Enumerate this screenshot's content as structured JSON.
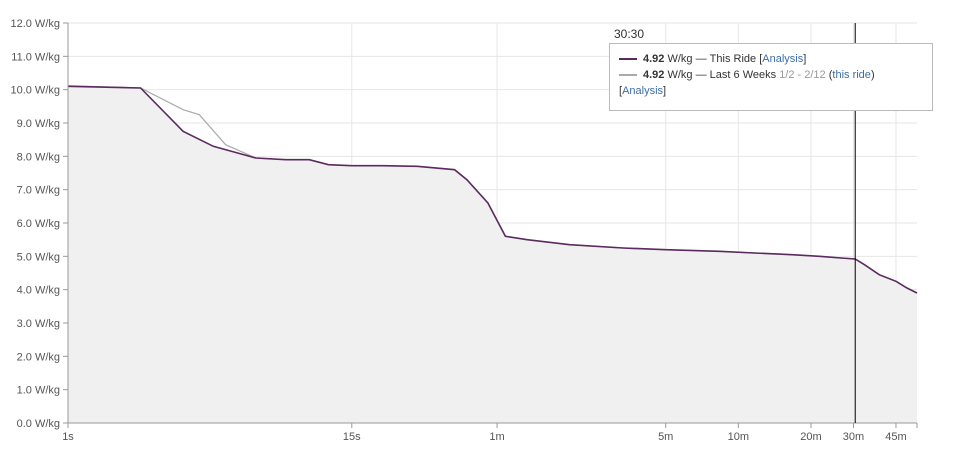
{
  "chart_data": {
    "type": "line",
    "title": "",
    "xlabel": "",
    "ylabel": "",
    "x_scale": "log",
    "ylim": [
      0,
      12
    ],
    "y_ticks": [
      "0.0 W/kg",
      "1.0 W/kg",
      "2.0 W/kg",
      "3.0 W/kg",
      "4.0 W/kg",
      "5.0 W/kg",
      "6.0 W/kg",
      "7.0 W/kg",
      "8.0 W/kg",
      "9.0 W/kg",
      "10.0 W/kg",
      "11.0 W/kg",
      "12.0 W/kg"
    ],
    "x_ticks": [
      {
        "label": "1s",
        "seconds": 1
      },
      {
        "label": "15s",
        "seconds": 15
      },
      {
        "label": "1m",
        "seconds": 60
      },
      {
        "label": "5m",
        "seconds": 300
      },
      {
        "label": "10m",
        "seconds": 600
      },
      {
        "label": "20m",
        "seconds": 1200
      },
      {
        "label": "30m",
        "seconds": 1800
      },
      {
        "label": "45m",
        "seconds": 2700
      }
    ],
    "x_range_seconds": [
      1,
      3300
    ],
    "grid": true,
    "series": [
      {
        "name": "This Ride",
        "color": "#5b2a5f",
        "points": [
          [
            1,
            10.1
          ],
          [
            2,
            10.05
          ],
          [
            3,
            8.75
          ],
          [
            4,
            8.3
          ],
          [
            6,
            7.95
          ],
          [
            8,
            7.9
          ],
          [
            10,
            7.9
          ],
          [
            12,
            7.75
          ],
          [
            15,
            7.72
          ],
          [
            20,
            7.72
          ],
          [
            28,
            7.7
          ],
          [
            40,
            7.6
          ],
          [
            45,
            7.3
          ],
          [
            55,
            6.6
          ],
          [
            65,
            5.6
          ],
          [
            80,
            5.5
          ],
          [
            120,
            5.35
          ],
          [
            200,
            5.25
          ],
          [
            300,
            5.2
          ],
          [
            500,
            5.15
          ],
          [
            700,
            5.1
          ],
          [
            1000,
            5.05
          ],
          [
            1300,
            5.0
          ],
          [
            1600,
            4.95
          ],
          [
            1830,
            4.92
          ],
          [
            2000,
            4.75
          ],
          [
            2300,
            4.45
          ],
          [
            2700,
            4.25
          ],
          [
            3000,
            4.05
          ],
          [
            3300,
            3.9
          ]
        ]
      },
      {
        "name": "Last 6 Weeks",
        "color": "#aaaaaa",
        "points": [
          [
            1,
            10.12
          ],
          [
            2,
            10.05
          ],
          [
            3,
            9.4
          ],
          [
            3.5,
            9.25
          ],
          [
            4.5,
            8.35
          ],
          [
            6,
            7.95
          ],
          [
            8,
            7.9
          ],
          [
            10,
            7.9
          ],
          [
            12,
            7.75
          ],
          [
            15,
            7.72
          ],
          [
            20,
            7.72
          ],
          [
            28,
            7.7
          ],
          [
            40,
            7.6
          ],
          [
            45,
            7.3
          ],
          [
            55,
            6.6
          ],
          [
            65,
            5.6
          ],
          [
            80,
            5.5
          ],
          [
            120,
            5.35
          ],
          [
            200,
            5.25
          ],
          [
            300,
            5.2
          ],
          [
            500,
            5.15
          ],
          [
            700,
            5.1
          ],
          [
            1000,
            5.05
          ],
          [
            1300,
            5.0
          ],
          [
            1600,
            4.95
          ],
          [
            1830,
            4.92
          ],
          [
            2000,
            4.75
          ],
          [
            2300,
            4.45
          ],
          [
            2700,
            4.25
          ],
          [
            3000,
            4.05
          ],
          [
            3300,
            3.9
          ]
        ]
      }
    ],
    "hover": {
      "x_seconds": 1830,
      "time_label": "30:30"
    }
  },
  "tooltip": {
    "row1": {
      "value": "4.92",
      "unit": "W/kg",
      "separator": "—",
      "series": "This Ride",
      "link_open": "[",
      "link": "Analysis",
      "link_close": "]"
    },
    "row2": {
      "value": "4.92",
      "unit": "W/kg",
      "separator": "—",
      "series": "Last 6 Weeks",
      "range": "1/2 - 2/12",
      "paren_open": "(",
      "link": "this ride",
      "paren_close": ")"
    },
    "row3": {
      "link_open": "[",
      "link": "Analysis",
      "link_close": "]"
    }
  },
  "colors": {
    "this_ride": "#5b2a5f",
    "last_6_weeks": "#aaaaaa",
    "area_fill": "#f0f0f0",
    "link": "#3a6ea5"
  }
}
